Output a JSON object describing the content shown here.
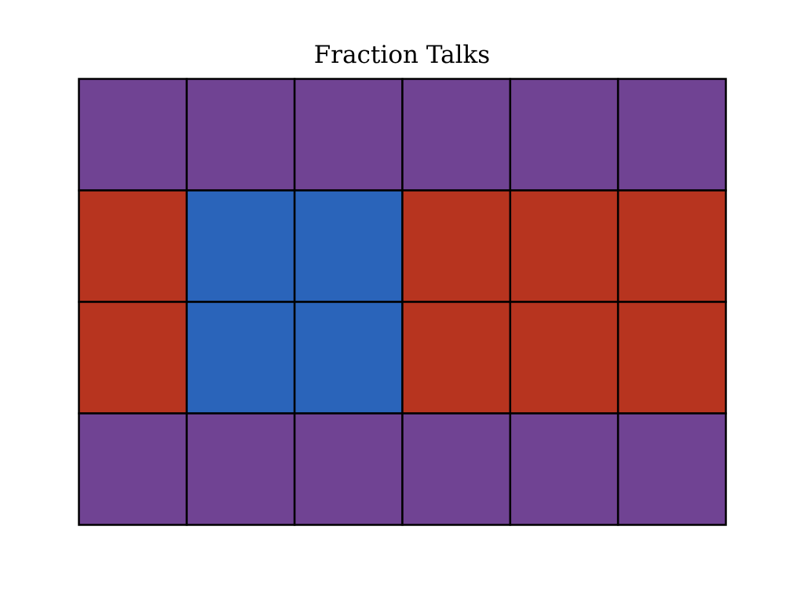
{
  "title": "Fraction Talks",
  "colors": {
    "purple": "#704393",
    "red": "#b7341f",
    "blue": "#2a64ba",
    "border": "#000000"
  },
  "grid": {
    "rows": 4,
    "cols": 6,
    "cells": [
      [
        "purple",
        "purple",
        "purple",
        "purple",
        "purple",
        "purple"
      ],
      [
        "red",
        "blue",
        "blue",
        "red",
        "red",
        "red"
      ],
      [
        "red",
        "blue",
        "blue",
        "red",
        "red",
        "red"
      ],
      [
        "purple",
        "purple",
        "purple",
        "purple",
        "purple",
        "purple"
      ]
    ]
  }
}
